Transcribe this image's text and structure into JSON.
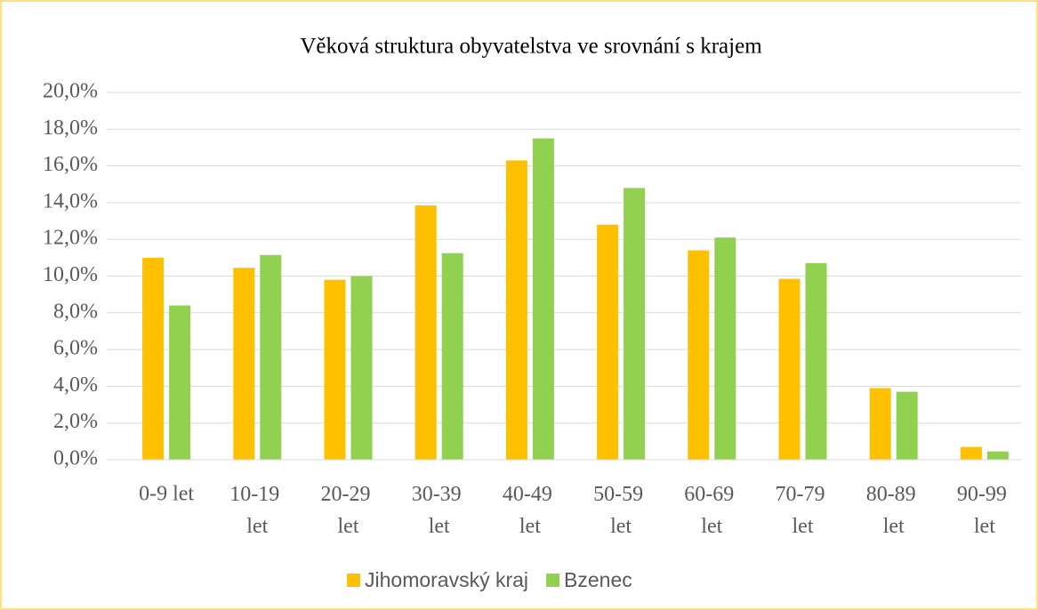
{
  "chart_data": {
    "type": "bar",
    "title": "Věková struktura obyvatelstva ve srovnání s krajem",
    "categories": [
      "0-9 let",
      "10-19 let",
      "20-29 let",
      "30-39 let",
      "40-49 let",
      "50-59 let",
      "60-69 let",
      "70-79 let",
      "80-89 let",
      "90-99 let"
    ],
    "series": [
      {
        "name": "Jihomoravský kraj",
        "color": "#ffc000",
        "values": [
          11.0,
          10.45,
          9.8,
          13.85,
          16.3,
          12.8,
          11.4,
          9.85,
          3.9,
          0.7
        ]
      },
      {
        "name": "Bzenec",
        "color": "#92d050",
        "values": [
          8.4,
          11.15,
          10.0,
          11.25,
          17.5,
          14.8,
          12.1,
          10.7,
          3.7,
          0.45
        ]
      }
    ],
    "ylim": [
      0,
      20
    ],
    "yticks": [
      {
        "value": 0,
        "label": "0,0%"
      },
      {
        "value": 2,
        "label": "2,0%"
      },
      {
        "value": 4,
        "label": "4,0%"
      },
      {
        "value": 6,
        "label": "6,0%"
      },
      {
        "value": 8,
        "label": "8,0%"
      },
      {
        "value": 10,
        "label": "10,0%"
      },
      {
        "value": 12,
        "label": "12,0%"
      },
      {
        "value": 14,
        "label": "14,0%"
      },
      {
        "value": 16,
        "label": "16,0%"
      },
      {
        "value": 18,
        "label": "18,0%"
      },
      {
        "value": 20,
        "label": "20,0%"
      }
    ],
    "grid": true,
    "legend": "bottom"
  }
}
